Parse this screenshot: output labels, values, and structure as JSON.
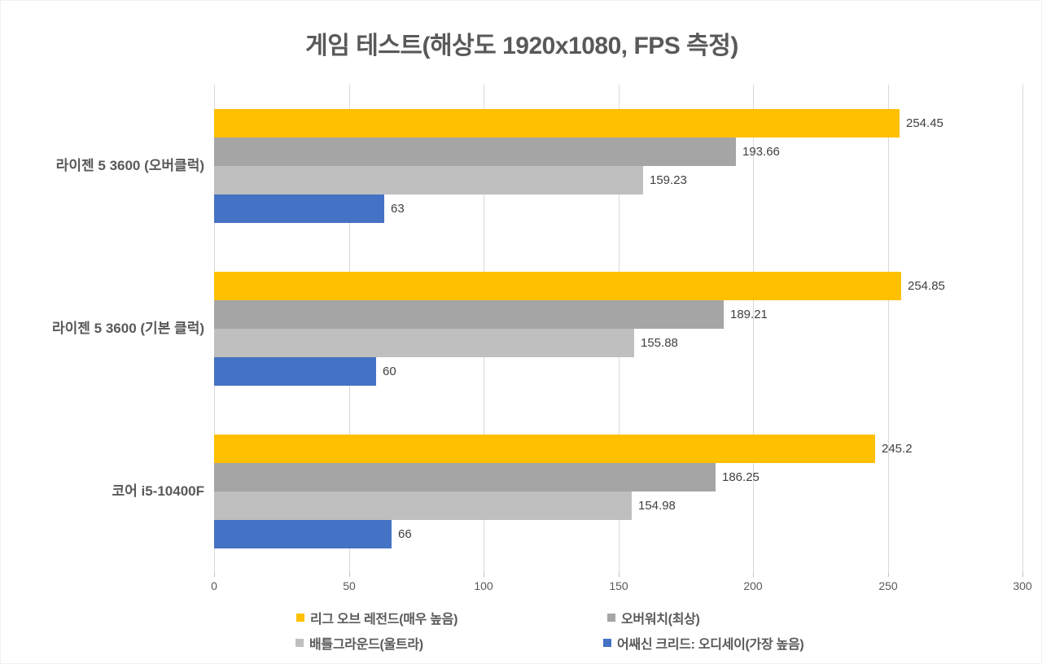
{
  "chart_data": {
    "type": "bar",
    "orientation": "horizontal",
    "title": "게임 테스트(해상도 1920x1080, FPS 측정)",
    "categories": [
      "라이젠 5 3600 (오버클럭)",
      "라이젠 5 3600 (기본 클럭)",
      "코어 i5-10400F"
    ],
    "series": [
      {
        "name": "리그 오브 레전드(매우 높음)",
        "color": "#FFC000",
        "values": [
          254.45,
          254.85,
          245.2
        ],
        "labels": [
          "254.45",
          "254.85",
          "245.2"
        ]
      },
      {
        "name": "오버워치(최상)",
        "color": "#A5A5A5",
        "values": [
          193.66,
          189.21,
          186.25
        ],
        "labels": [
          "193.66",
          "189.21",
          "186.25"
        ]
      },
      {
        "name": "배틀그라운드(울트라)",
        "color": "#BFBFBF",
        "values": [
          159.23,
          155.88,
          154.98
        ],
        "labels": [
          "159.23",
          "155.88",
          "154.98"
        ]
      },
      {
        "name": "어쌔신 크리드: 오디세이(가장 높음)",
        "color": "#4472C4",
        "values": [
          63,
          60,
          66
        ],
        "labels": [
          "63",
          "60",
          "66"
        ]
      }
    ],
    "x_axis": {
      "min": 0,
      "max": 300,
      "step": 50,
      "ticks": [
        "0",
        "50",
        "100",
        "150",
        "200",
        "250",
        "300"
      ]
    },
    "grid": true,
    "legend_position": "bottom",
    "colors": {
      "title_text": "#595959",
      "axis_text": "#595959",
      "value_label_text": "#404040",
      "gridline": "#D9D9D9",
      "background": "#FFFFFF"
    }
  }
}
